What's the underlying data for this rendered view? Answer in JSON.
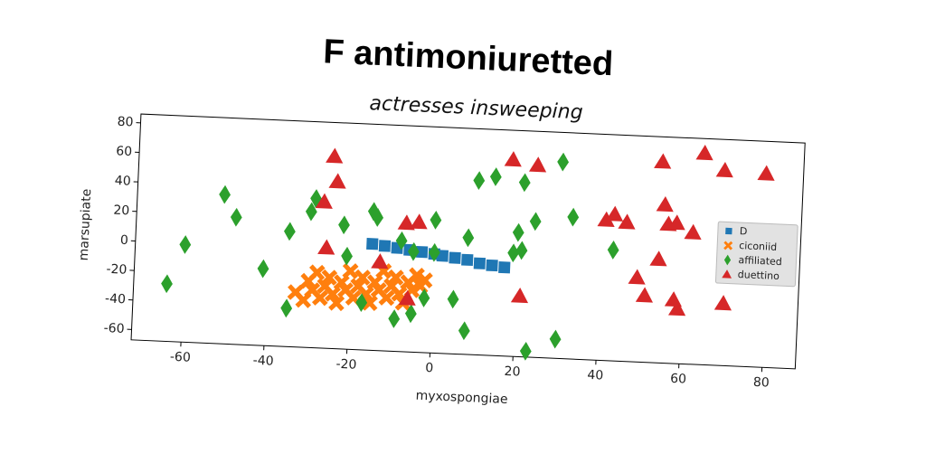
{
  "chart_data": {
    "type": "scatter",
    "title": "F antimoniuretted",
    "subtitle": "actresses insweeping",
    "x_label": "myxospongiae",
    "y_label": "marsupiate",
    "xlim": [
      -72,
      88
    ],
    "ylim": [
      -67,
      86
    ],
    "xticks": [
      -60,
      -40,
      -20,
      0,
      20,
      40,
      60,
      80
    ],
    "yticks": [
      -60,
      -40,
      -20,
      0,
      20,
      40,
      60,
      80
    ],
    "legend": "center right",
    "series": [
      {
        "name": "D",
        "color": "#1f77b4",
        "marker": "square",
        "x": [
          -15,
          -12,
          -9,
          -6,
          -3,
          0,
          2,
          5,
          8,
          11,
          14,
          17
        ],
        "values": [
          5,
          4,
          3,
          2,
          1,
          0,
          -1,
          -2,
          -3,
          -5,
          -6,
          -7
        ]
      },
      {
        "name": "ciconiid",
        "color": "#ff7f0e",
        "marker": "x",
        "x": [
          -33,
          -31,
          -30,
          -29,
          -28,
          -27,
          -26,
          -25,
          -24,
          -23,
          -22,
          -21,
          -20,
          -19,
          -18,
          -17,
          -16,
          -15,
          -14,
          -13,
          -12,
          -11,
          -10,
          -9,
          -8,
          -7,
          -6,
          -5,
          -4,
          -3,
          -2
        ],
        "values": [
          -30,
          -35,
          -22,
          -28,
          -16,
          -33,
          -25,
          -19,
          -30,
          -36,
          -22,
          -27,
          -14,
          -32,
          -24,
          -18,
          -29,
          -35,
          -21,
          -26,
          -13,
          -31,
          -23,
          -17,
          -28,
          -34,
          -20,
          -25,
          -15,
          -22,
          -18
        ]
      },
      {
        "name": "affiliated",
        "color": "#2ca02c",
        "marker": "diamond",
        "x": [
          -64,
          -60,
          -51,
          -48,
          -41,
          -35,
          -35,
          -30,
          -29,
          -22,
          -21,
          -17,
          -15,
          -14,
          -9,
          -8,
          -5,
          -5,
          -2,
          0,
          0,
          5,
          8,
          8,
          10,
          14,
          19,
          20,
          21,
          21,
          23,
          24,
          30,
          30,
          33,
          43
        ],
        "values": [
          -28,
          -1,
          34,
          19,
          -15,
          11,
          -41,
          25,
          34,
          17,
          -4,
          -35,
          27,
          23,
          -45,
          8,
          1,
          -41,
          -30,
          23,
          1,
          -30,
          12,
          -51,
          51,
          54,
          3,
          17,
          51,
          5,
          -63,
          25,
          -54,
          66,
          29,
          8
        ]
      },
      {
        "name": "duettino",
        "color": "#d62728",
        "marker": "triangle",
        "x": [
          -25,
          -24,
          -27,
          -26,
          -13,
          -7,
          -4,
          -6,
          18,
          24,
          21,
          41,
          43,
          46,
          54,
          64,
          69,
          79,
          55,
          56,
          58,
          62,
          54,
          49,
          51,
          58,
          59,
          70
        ],
        "values": [
          63,
          46,
          32,
          1,
          -7,
          20,
          21,
          -31,
          66,
          63,
          -26,
          28,
          32,
          27,
          69,
          76,
          65,
          64,
          40,
          27,
          28,
          22,
          3,
          -10,
          -22,
          -24,
          -30,
          -25
        ]
      }
    ]
  }
}
